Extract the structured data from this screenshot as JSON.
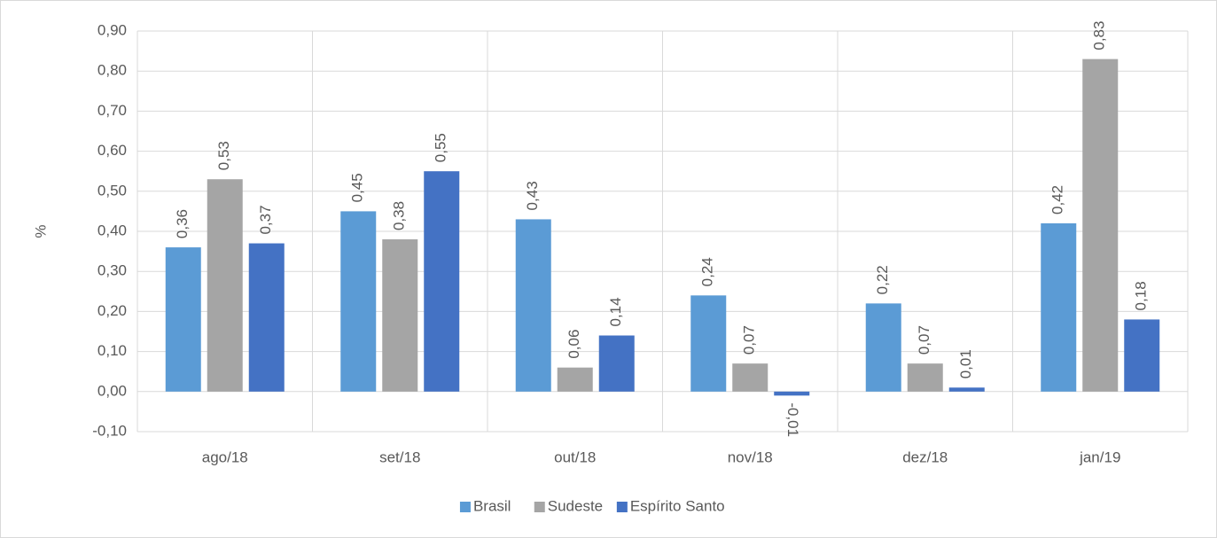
{
  "chart_data": {
    "type": "bar",
    "y_label": "%",
    "categories": [
      "ago/18",
      "set/18",
      "out/18",
      "nov/18",
      "dez/18",
      "jan/19"
    ],
    "series": [
      {
        "name": "Brasil",
        "color": "#5b9bd5",
        "values": [
          0.36,
          0.45,
          0.43,
          0.24,
          0.22,
          0.42
        ],
        "value_labels": [
          "0,36",
          "0,45",
          "0,43",
          "0,24",
          "0,22",
          "0,42"
        ]
      },
      {
        "name": "Sudeste",
        "color": "#a5a5a5",
        "values": [
          0.53,
          0.38,
          0.06,
          0.07,
          0.07,
          0.83
        ],
        "value_labels": [
          "0,53",
          "0,38",
          "0,06",
          "0,07",
          "0,07",
          "0,83"
        ]
      },
      {
        "name": "Espírito Santo",
        "color": "#4472c4",
        "values": [
          0.37,
          0.55,
          0.14,
          -0.01,
          0.01,
          0.18
        ],
        "value_labels": [
          "0,37",
          "0,55",
          "0,14",
          "-0,01",
          "0,01",
          "0,18"
        ]
      }
    ],
    "ylim": [
      -0.1,
      0.9
    ],
    "yticks": [
      {
        "value": -0.1,
        "label": "-0,10"
      },
      {
        "value": 0,
        "label": "0,00"
      },
      {
        "value": 0.1,
        "label": "0,10"
      },
      {
        "value": 0.2,
        "label": "0,20"
      },
      {
        "value": 0.3,
        "label": "0,30"
      },
      {
        "value": 0.4,
        "label": "0,40"
      },
      {
        "value": 0.5,
        "label": "0,50"
      },
      {
        "value": 0.6,
        "label": "0,60"
      },
      {
        "value": 0.7,
        "label": "0,70"
      },
      {
        "value": 0.8,
        "label": "0,80"
      },
      {
        "value": 0.9,
        "label": "0,90"
      }
    ],
    "grid": true,
    "legend": "bottom"
  }
}
